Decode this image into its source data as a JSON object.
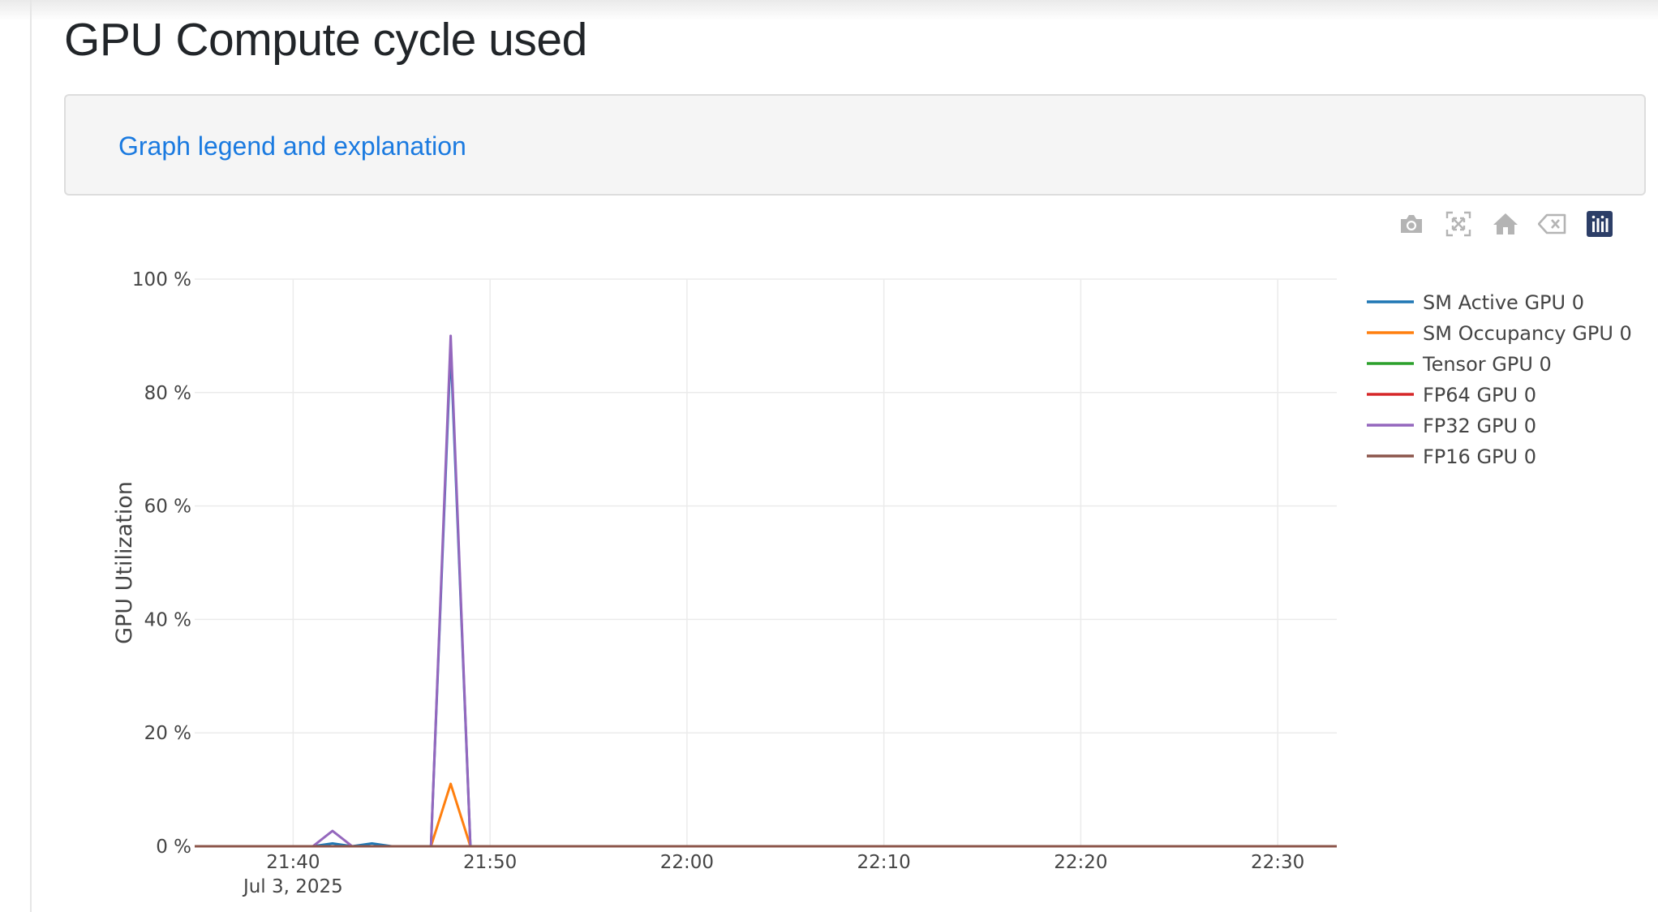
{
  "page": {
    "title": "GPU Compute cycle used",
    "legend_link": "Graph legend and explanation"
  },
  "modebar": {
    "icons": [
      "camera-icon",
      "autoscale-icon",
      "home-icon",
      "eraser-icon",
      "plotly-logo-icon"
    ],
    "active_color": "#2c3e67",
    "inactive_color": "#b4b4b4"
  },
  "chart_data": {
    "type": "line",
    "ylabel": "GPU Utilization",
    "ylim": [
      0,
      100
    ],
    "y_ticks": [
      "0 %",
      "20 %",
      "40 %",
      "60 %",
      "80 %",
      "100 %"
    ],
    "y_tick_values": [
      0,
      20,
      40,
      60,
      80,
      100
    ],
    "xlim": [
      "2025-07-03 21:35",
      "2025-07-03 22:33"
    ],
    "x_tick_values": [
      "2025-07-03 21:40",
      "2025-07-03 21:50",
      "2025-07-03 22:00",
      "2025-07-03 22:10",
      "2025-07-03 22:20",
      "2025-07-03 22:30"
    ],
    "x_ticks": [
      "21:40",
      "21:50",
      "22:00",
      "22:10",
      "22:20",
      "22:30"
    ],
    "x_date_label": "Jul 3, 2025",
    "grid": true,
    "legend_position": "right",
    "x": [
      "2025-07-03 21:35",
      "2025-07-03 21:41",
      "2025-07-03 21:42",
      "2025-07-03 21:43",
      "2025-07-03 21:44",
      "2025-07-03 21:45",
      "2025-07-03 21:47",
      "2025-07-03 21:48",
      "2025-07-03 21:49",
      "2025-07-03 21:50",
      "2025-07-03 22:33"
    ],
    "series": [
      {
        "name": "SM Active GPU 0",
        "color": "#1f77b4",
        "values": [
          0,
          0,
          0.5,
          0,
          0.5,
          0,
          0,
          88,
          0,
          0,
          0
        ]
      },
      {
        "name": "SM Occupancy GPU 0",
        "color": "#ff7f0e",
        "values": [
          0,
          0,
          0,
          0,
          0,
          0,
          0,
          11,
          0,
          0,
          0
        ]
      },
      {
        "name": "Tensor GPU 0",
        "color": "#2ca02c",
        "values": [
          0,
          0,
          0,
          0,
          0,
          0,
          0,
          0,
          0,
          0,
          0
        ]
      },
      {
        "name": "FP64 GPU 0",
        "color": "#d62728",
        "values": [
          0,
          0,
          0,
          0,
          0,
          0,
          0,
          0,
          0,
          0,
          0
        ]
      },
      {
        "name": "FP32 GPU 0",
        "color": "#9467bd",
        "values": [
          0,
          0,
          2.7,
          0,
          0,
          0,
          0,
          90,
          0,
          0,
          0
        ]
      },
      {
        "name": "FP16 GPU 0",
        "color": "#8c564b",
        "values": [
          0,
          0,
          0,
          0,
          0,
          0,
          0,
          0,
          0,
          0,
          0
        ]
      }
    ]
  }
}
